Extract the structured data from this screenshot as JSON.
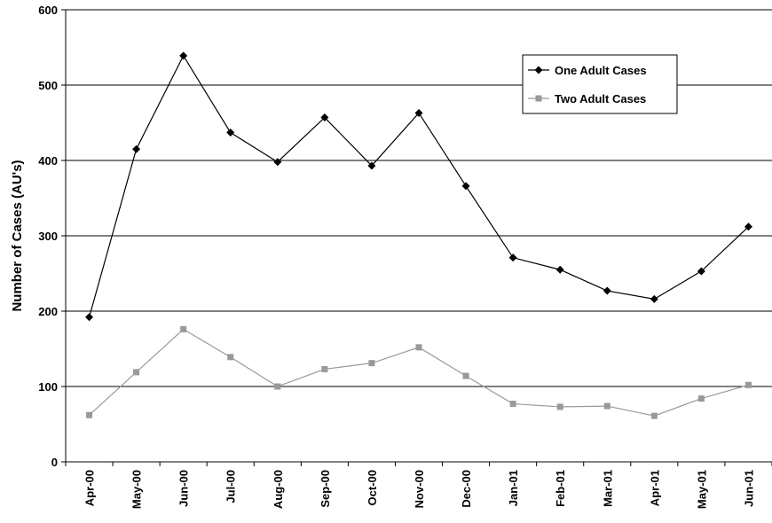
{
  "chart_data": {
    "type": "line",
    "ylabel": "Number of Cases (AU's)",
    "xlabel": "",
    "ylim": [
      0,
      600
    ],
    "yticks": [
      0,
      100,
      200,
      300,
      400,
      500,
      600
    ],
    "categories": [
      "Apr-00",
      "May-00",
      "Jun-00",
      "Jul-00",
      "Aug-00",
      "Sep-00",
      "Oct-00",
      "Nov-00",
      "Dec-00",
      "Jan-01",
      "Feb-01",
      "Mar-01",
      "Apr-01",
      "May-01",
      "Jun-01"
    ],
    "grid": "horizontal",
    "legend_position": "top-right",
    "series": [
      {
        "name": "One Adult Cases",
        "color": "#000000",
        "marker": "diamond",
        "values": [
          192,
          415,
          539,
          437,
          398,
          457,
          393,
          463,
          366,
          271,
          255,
          227,
          216,
          253,
          312
        ]
      },
      {
        "name": "Two Adult Cases",
        "color": "#999999",
        "marker": "square",
        "values": [
          62,
          119,
          176,
          139,
          100,
          123,
          131,
          152,
          114,
          77,
          73,
          74,
          61,
          84,
          102
        ]
      }
    ]
  }
}
